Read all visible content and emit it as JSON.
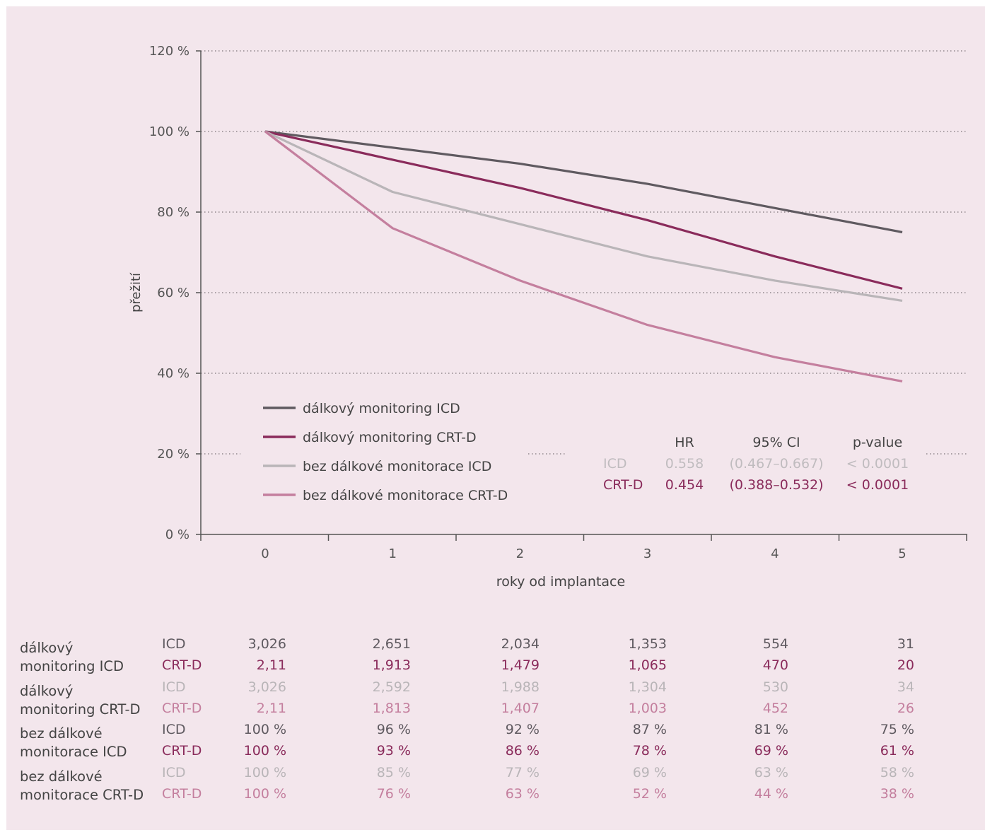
{
  "chart_data": {
    "type": "line",
    "xlabel": "roky od implantace",
    "ylabel": "přežití",
    "x": [
      0,
      1,
      2,
      3,
      4,
      5
    ],
    "ylim": [
      0,
      120
    ],
    "y_ticks": [
      "0 %",
      "20 %",
      "40 %",
      "60 %",
      "80 %",
      "100 %",
      "120 %"
    ],
    "x_ticks": [
      "0",
      "1",
      "2",
      "3",
      "4",
      "5"
    ],
    "grid": "horizontal dotted",
    "legend_position": "bottom-left",
    "series": [
      {
        "name": "dálkový monitoring ICD",
        "color": "#5f5a60",
        "values": [
          100,
          96,
          92,
          87,
          81,
          75
        ]
      },
      {
        "name": "dálkový monitoring CRT-D",
        "color": "#8a2b5b",
        "values": [
          100,
          93,
          86,
          78,
          69,
          61
        ]
      },
      {
        "name": "bez dálkové monitorace ICD",
        "color": "#b9b5b8",
        "values": [
          100,
          85,
          77,
          69,
          63,
          58
        ]
      },
      {
        "name": "bez dálkové monitorace CRT-D",
        "color": "#c47f9e",
        "values": [
          100,
          76,
          63,
          52,
          44,
          38
        ]
      }
    ],
    "stats_table": {
      "headers": [
        "HR",
        "95% CI",
        "p-value"
      ],
      "rows": [
        {
          "label": "ICD",
          "hr": "0.558",
          "ci": "(0.467–0.667)",
          "p": "< 0.0001",
          "color": "#c0bcbf"
        },
        {
          "label": "CRT-D",
          "hr": "0.454",
          "ci": "(0.388–0.532)",
          "p": "< 0.0001",
          "color": "#8a2b5b"
        }
      ]
    }
  },
  "numbers_table": {
    "groups": [
      {
        "name_line1": "dálkový",
        "name_line2": "monitoring ICD",
        "rows": [
          {
            "label": "ICD",
            "color": "#5f5a60",
            "values": [
              "3,026",
              "2,651",
              "2,034",
              "1,353",
              "554",
              "31"
            ]
          },
          {
            "label": "CRT-D",
            "color": "#8a2b5b",
            "values": [
              "2,11",
              "1,913",
              "1,479",
              "1,065",
              "470",
              "20"
            ]
          }
        ]
      },
      {
        "name_line1": "dálkový",
        "name_line2": "monitoring CRT-D",
        "rows": [
          {
            "label": "ICD",
            "color": "#b9b5b8",
            "values": [
              "3,026",
              "2,592",
              "1,988",
              "1,304",
              "530",
              "34"
            ]
          },
          {
            "label": "CRT-D",
            "color": "#c47f9e",
            "values": [
              "2,11",
              "1,813",
              "1,407",
              "1,003",
              "452",
              "26"
            ]
          }
        ]
      },
      {
        "name_line1": "bez dálkové",
        "name_line2": "monitorace ICD",
        "rows": [
          {
            "label": "ICD",
            "color": "#5f5a60",
            "values": [
              "100 %",
              "96 %",
              "92 %",
              "87 %",
              "81 %",
              "75 %"
            ]
          },
          {
            "label": "CRT-D",
            "color": "#8a2b5b",
            "values": [
              "100 %",
              "93 %",
              "86 %",
              "78 %",
              "69 %",
              "61 %"
            ]
          }
        ]
      },
      {
        "name_line1": "bez dálkové",
        "name_line2": "monitorace CRT-D",
        "rows": [
          {
            "label": "ICD",
            "color": "#b9b5b8",
            "values": [
              "100 %",
              "85 %",
              "77 %",
              "69 %",
              "63 %",
              "58 %"
            ]
          },
          {
            "label": "CRT-D",
            "color": "#c47f9e",
            "values": [
              "100 %",
              "76 %",
              "63 %",
              "52 %",
              "44 %",
              "38 %"
            ]
          }
        ]
      }
    ]
  }
}
